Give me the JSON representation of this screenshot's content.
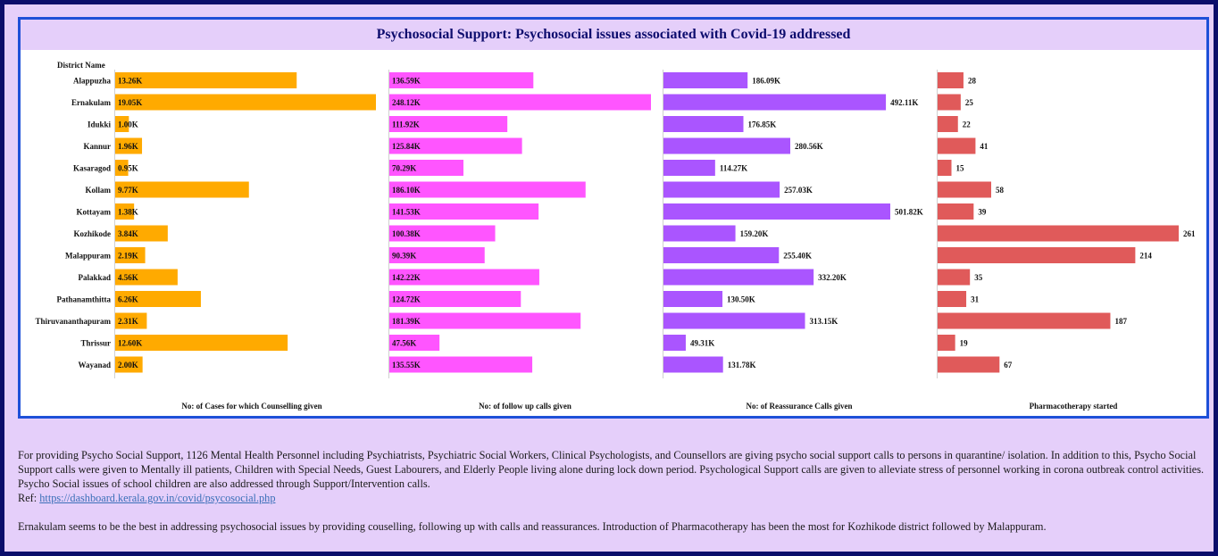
{
  "colors": {
    "frame_border": "#0b0e6b",
    "frame_background": "#e5cffa",
    "panel_border": "#1e50d8",
    "title_color": "#0d0d6e"
  },
  "chart_data": {
    "type": "bar",
    "orientation": "horizontal",
    "title": "Psychosocial Support: Psychosocial issues associated with Covid-19 addressed",
    "category_label": "District Name",
    "categories": [
      "Alappuzha",
      "Ernakulam",
      "Idukki",
      "Kannur",
      "Kasaragod",
      "Kollam",
      "Kottayam",
      "Kozhikode",
      "Malappuram",
      "Palakkad",
      "Pathanamthitta",
      "Thiruvananthapuram",
      "Thrissur",
      "Wayanad"
    ],
    "grid": false,
    "legend": "none",
    "series": [
      {
        "name": "No: of Cases for which Counselling given",
        "color": "#ffaa00",
        "values": [
          13260,
          19050,
          1000,
          1960,
          950,
          9770,
          1380,
          3840,
          2190,
          4560,
          6260,
          2310,
          12600,
          2000
        ],
        "labels": [
          "13.26K",
          "19.05K",
          "1.00K",
          "1.96K",
          "0.95K",
          "9.77K",
          "1.38K",
          "3.84K",
          "2.19K",
          "4.56K",
          "6.26K",
          "2.31K",
          "12.60K",
          "2.00K"
        ]
      },
      {
        "name": "No: of follow up calls given",
        "color": "#ff55ff",
        "values": [
          136590,
          248120,
          111920,
          125840,
          70290,
          186100,
          141530,
          100380,
          90390,
          142220,
          124720,
          181390,
          47560,
          135550
        ],
        "labels": [
          "136.59K",
          "248.12K",
          "111.92K",
          "125.84K",
          "70.29K",
          "186.10K",
          "141.53K",
          "100.38K",
          "90.39K",
          "142.22K",
          "124.72K",
          "181.39K",
          "47.56K",
          "135.55K"
        ]
      },
      {
        "name": "No: of Reassurance  Calls given",
        "color": "#aa55ff",
        "values": [
          186090,
          492110,
          176850,
          280560,
          114270,
          257030,
          501820,
          159200,
          255400,
          332200,
          130500,
          313150,
          49310,
          131780
        ],
        "labels": [
          "186.09K",
          "492.11K",
          "176.85K",
          "280.56K",
          "114.27K",
          "257.03K",
          "501.82K",
          "159.20K",
          "255.40K",
          "332.20K",
          "130.50K",
          "313.15K",
          "49.31K",
          "131.78K"
        ]
      },
      {
        "name": "Pharmacotherapy started",
        "color": "#e05a5a",
        "values": [
          28,
          25,
          22,
          41,
          15,
          58,
          39,
          261,
          214,
          35,
          31,
          187,
          19,
          67
        ],
        "labels": [
          "28",
          "25",
          "22",
          "41",
          "15",
          "58",
          "39",
          "261",
          "214",
          "35",
          "31",
          "187",
          "19",
          "67"
        ]
      }
    ]
  },
  "description": {
    "paragraph": "For providing Psycho Social Support, 1126 Mental Health Personnel including Psychiatrists, Psychiatric Social Workers, Clinical Psychologists, and Counsellors are giving  psycho social support calls to persons in quarantine/ isolation. In addition to this, Psycho Social Support calls were given to Mentally ill patients, Children with Special Needs, Guest Labourers, and Elderly People living alone during lock down period. Psychological Support calls are given to alleviate stress of personnel working in corona outbreak control activities. Psycho Social issues of school children are also addressed through Support/Intervention calls.",
    "ref_label": "Ref: ",
    "ref_link": "https://dashboard.kerala.gov.in/covid/psycosocial.php",
    "conclusion": "Ernakulam seems to be the best in addressing psychosocial issues by providing couselling, following up with calls and reassurances. Introduction of Pharmacotherapy has  been the most for Kozhikode district followed by Malappuram."
  }
}
